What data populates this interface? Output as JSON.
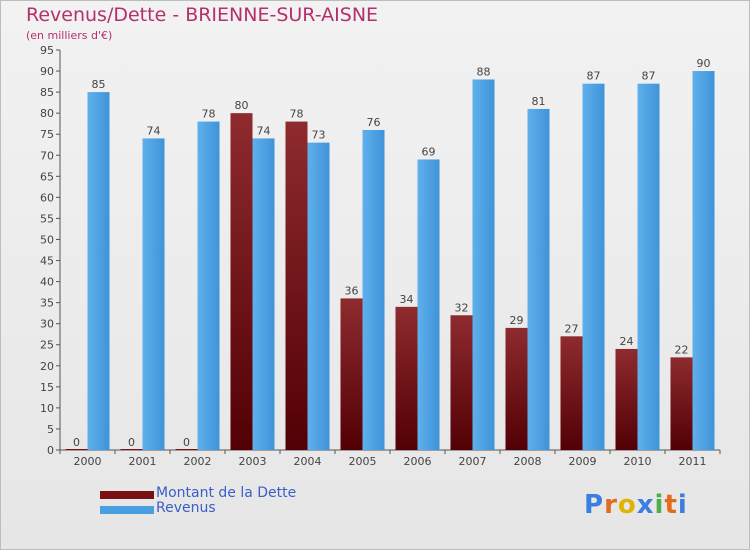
{
  "chart_data": {
    "type": "bar",
    "title": "Revenus/Dette - BRIENNE-SUR-AISNE",
    "subtitle": "(en milliers d'€)",
    "categories": [
      "2000",
      "2001",
      "2002",
      "2003",
      "2004",
      "2005",
      "2006",
      "2007",
      "2008",
      "2009",
      "2010",
      "2011"
    ],
    "series": [
      {
        "name": "Montant de la Dette",
        "color": "#7a0f14",
        "values": [
          0,
          0,
          0,
          80,
          78,
          36,
          34,
          32,
          29,
          27,
          24,
          22
        ]
      },
      {
        "name": "Revenus",
        "color": "#4a9fe0",
        "values": [
          85,
          74,
          78,
          74,
          73,
          76,
          69,
          88,
          81,
          87,
          87,
          90
        ]
      }
    ],
    "ylim": [
      0,
      95
    ],
    "ytick_step": 5,
    "grid": false,
    "legend_position": "bottom-left"
  },
  "logo": {
    "text": "Proxiti",
    "colors": [
      "#3a7ee0",
      "#e36b1e",
      "#e0b400",
      "#3a7ee0",
      "#4cae4c",
      "#e36b1e",
      "#3a7ee0"
    ]
  }
}
